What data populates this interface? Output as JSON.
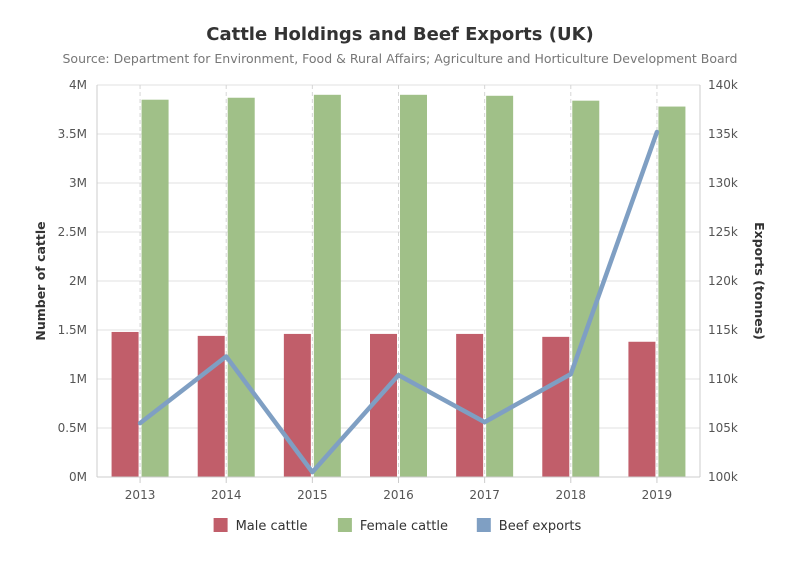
{
  "chart_data": {
    "type": "bar",
    "title": "Cattle Holdings and Beef Exports (UK)",
    "subtitle": "Source: Department for Environment, Food & Rural Affairs; Agriculture and Horticulture Development Board",
    "categories": [
      "2013",
      "2014",
      "2015",
      "2016",
      "2017",
      "2018",
      "2019"
    ],
    "y_left": {
      "label": "Number of cattle",
      "min": 0,
      "max": 4000000,
      "ticks": [
        0,
        500000,
        1000000,
        1500000,
        2000000,
        2500000,
        3000000,
        3500000,
        4000000
      ],
      "tick_labels": [
        "0M",
        "0.5M",
        "1M",
        "1.5M",
        "2M",
        "2.5M",
        "3M",
        "3.5M",
        "4M"
      ]
    },
    "y_right": {
      "label": "Exports (tonnes)",
      "min": 100000,
      "max": 140000,
      "ticks": [
        100000,
        105000,
        110000,
        115000,
        120000,
        125000,
        130000,
        135000,
        140000
      ],
      "tick_labels": [
        "100k",
        "105k",
        "110k",
        "115k",
        "120k",
        "125k",
        "130k",
        "135k",
        "140k"
      ]
    },
    "series": [
      {
        "name": "Male cattle",
        "type": "bar",
        "axis": "left",
        "color": "#c15e6a",
        "values": [
          1480000,
          1440000,
          1460000,
          1460000,
          1460000,
          1430000,
          1380000
        ]
      },
      {
        "name": "Female cattle",
        "type": "bar",
        "axis": "left",
        "color": "#a0c088",
        "values": [
          3850000,
          3870000,
          3900000,
          3900000,
          3890000,
          3840000,
          3780000
        ]
      },
      {
        "name": "Beef exports",
        "type": "line",
        "axis": "right",
        "color": "#7f9fc3",
        "values": [
          105500,
          112300,
          100500,
          110400,
          105600,
          110500,
          135200
        ]
      }
    ],
    "legend_position": "bottom",
    "grid": true
  }
}
